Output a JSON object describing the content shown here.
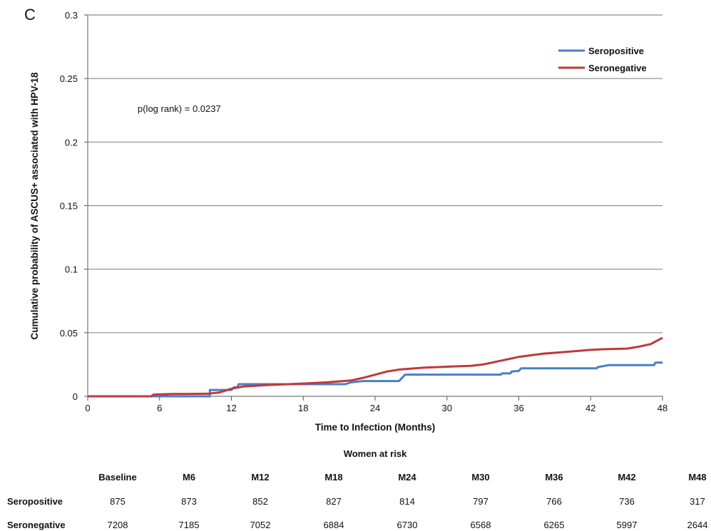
{
  "panel_label": "C",
  "chart_data": {
    "type": "line",
    "title": "",
    "xlabel": "Time to Infection (Months)",
    "ylabel": "Cumulative probability of ASCUS+ associated with HPV-18",
    "xlim": [
      0,
      48
    ],
    "ylim": [
      0,
      0.3
    ],
    "x_ticks": [
      0,
      6,
      12,
      18,
      24,
      30,
      36,
      42,
      48
    ],
    "y_ticks": [
      0,
      0.05,
      0.1,
      0.15,
      0.2,
      0.25,
      0.3
    ],
    "x_tick_labels": [
      "0",
      "6",
      "12",
      "18",
      "24",
      "30",
      "36",
      "42",
      "48"
    ],
    "y_tick_labels": [
      "0",
      "0.05",
      "0.1",
      "0.15",
      "0.2",
      "0.25",
      "0.3"
    ],
    "grid": "horizontal",
    "legend_position": "top-right",
    "annotation": "p(log rank) = 0.0237",
    "series": [
      {
        "name": "Seropositive",
        "color": "#4a7fc9",
        "points": [
          [
            0,
            0
          ],
          [
            10.2,
            0
          ],
          [
            10.2,
            0.005
          ],
          [
            12,
            0.005
          ],
          [
            12.2,
            0.007
          ],
          [
            12.5,
            0.007
          ],
          [
            12.6,
            0.0095
          ],
          [
            19,
            0.0095
          ],
          [
            21.5,
            0.0095
          ],
          [
            22,
            0.011
          ],
          [
            23,
            0.012
          ],
          [
            26,
            0.012
          ],
          [
            26.3,
            0.015
          ],
          [
            26.5,
            0.017
          ],
          [
            34.5,
            0.017
          ],
          [
            34.6,
            0.018
          ],
          [
            35.3,
            0.018
          ],
          [
            35.4,
            0.0195
          ],
          [
            36,
            0.02
          ],
          [
            36.2,
            0.022
          ],
          [
            42.5,
            0.022
          ],
          [
            42.6,
            0.023
          ],
          [
            43.5,
            0.0245
          ],
          [
            47.3,
            0.0245
          ],
          [
            47.4,
            0.0265
          ],
          [
            48,
            0.0265
          ]
        ]
      },
      {
        "name": "Seronegative",
        "color": "#c0393b",
        "points": [
          [
            0,
            0
          ],
          [
            5.3,
            0
          ],
          [
            5.5,
            0.0013
          ],
          [
            7,
            0.0018
          ],
          [
            10,
            0.002
          ],
          [
            11,
            0.003
          ],
          [
            12,
            0.006
          ],
          [
            13,
            0.0077
          ],
          [
            15,
            0.0088
          ],
          [
            18,
            0.01
          ],
          [
            20,
            0.011
          ],
          [
            22,
            0.0125
          ],
          [
            23,
            0.0145
          ],
          [
            24,
            0.017
          ],
          [
            25,
            0.0195
          ],
          [
            26,
            0.021
          ],
          [
            28,
            0.0225
          ],
          [
            30,
            0.0233
          ],
          [
            32,
            0.024
          ],
          [
            33,
            0.025
          ],
          [
            34,
            0.027
          ],
          [
            35,
            0.029
          ],
          [
            36,
            0.031
          ],
          [
            38,
            0.0335
          ],
          [
            40,
            0.035
          ],
          [
            42,
            0.0365
          ],
          [
            43,
            0.037
          ],
          [
            45,
            0.0375
          ],
          [
            46,
            0.039
          ],
          [
            47,
            0.041
          ],
          [
            48,
            0.046
          ]
        ]
      }
    ]
  },
  "risk_table": {
    "title": "Women at risk",
    "headers": [
      "Baseline",
      "M6",
      "M12",
      "M18",
      "M24",
      "M30",
      "M36",
      "M42",
      "M48"
    ],
    "rows": [
      {
        "label": "Seropositive",
        "values": [
          "875",
          "873",
          "852",
          "827",
          "814",
          "797",
          "766",
          "736",
          "317"
        ]
      },
      {
        "label": "Seronegative",
        "values": [
          "7208",
          "7185",
          "7052",
          "6884",
          "6730",
          "6568",
          "6265",
          "5997",
          "2644"
        ]
      }
    ]
  }
}
